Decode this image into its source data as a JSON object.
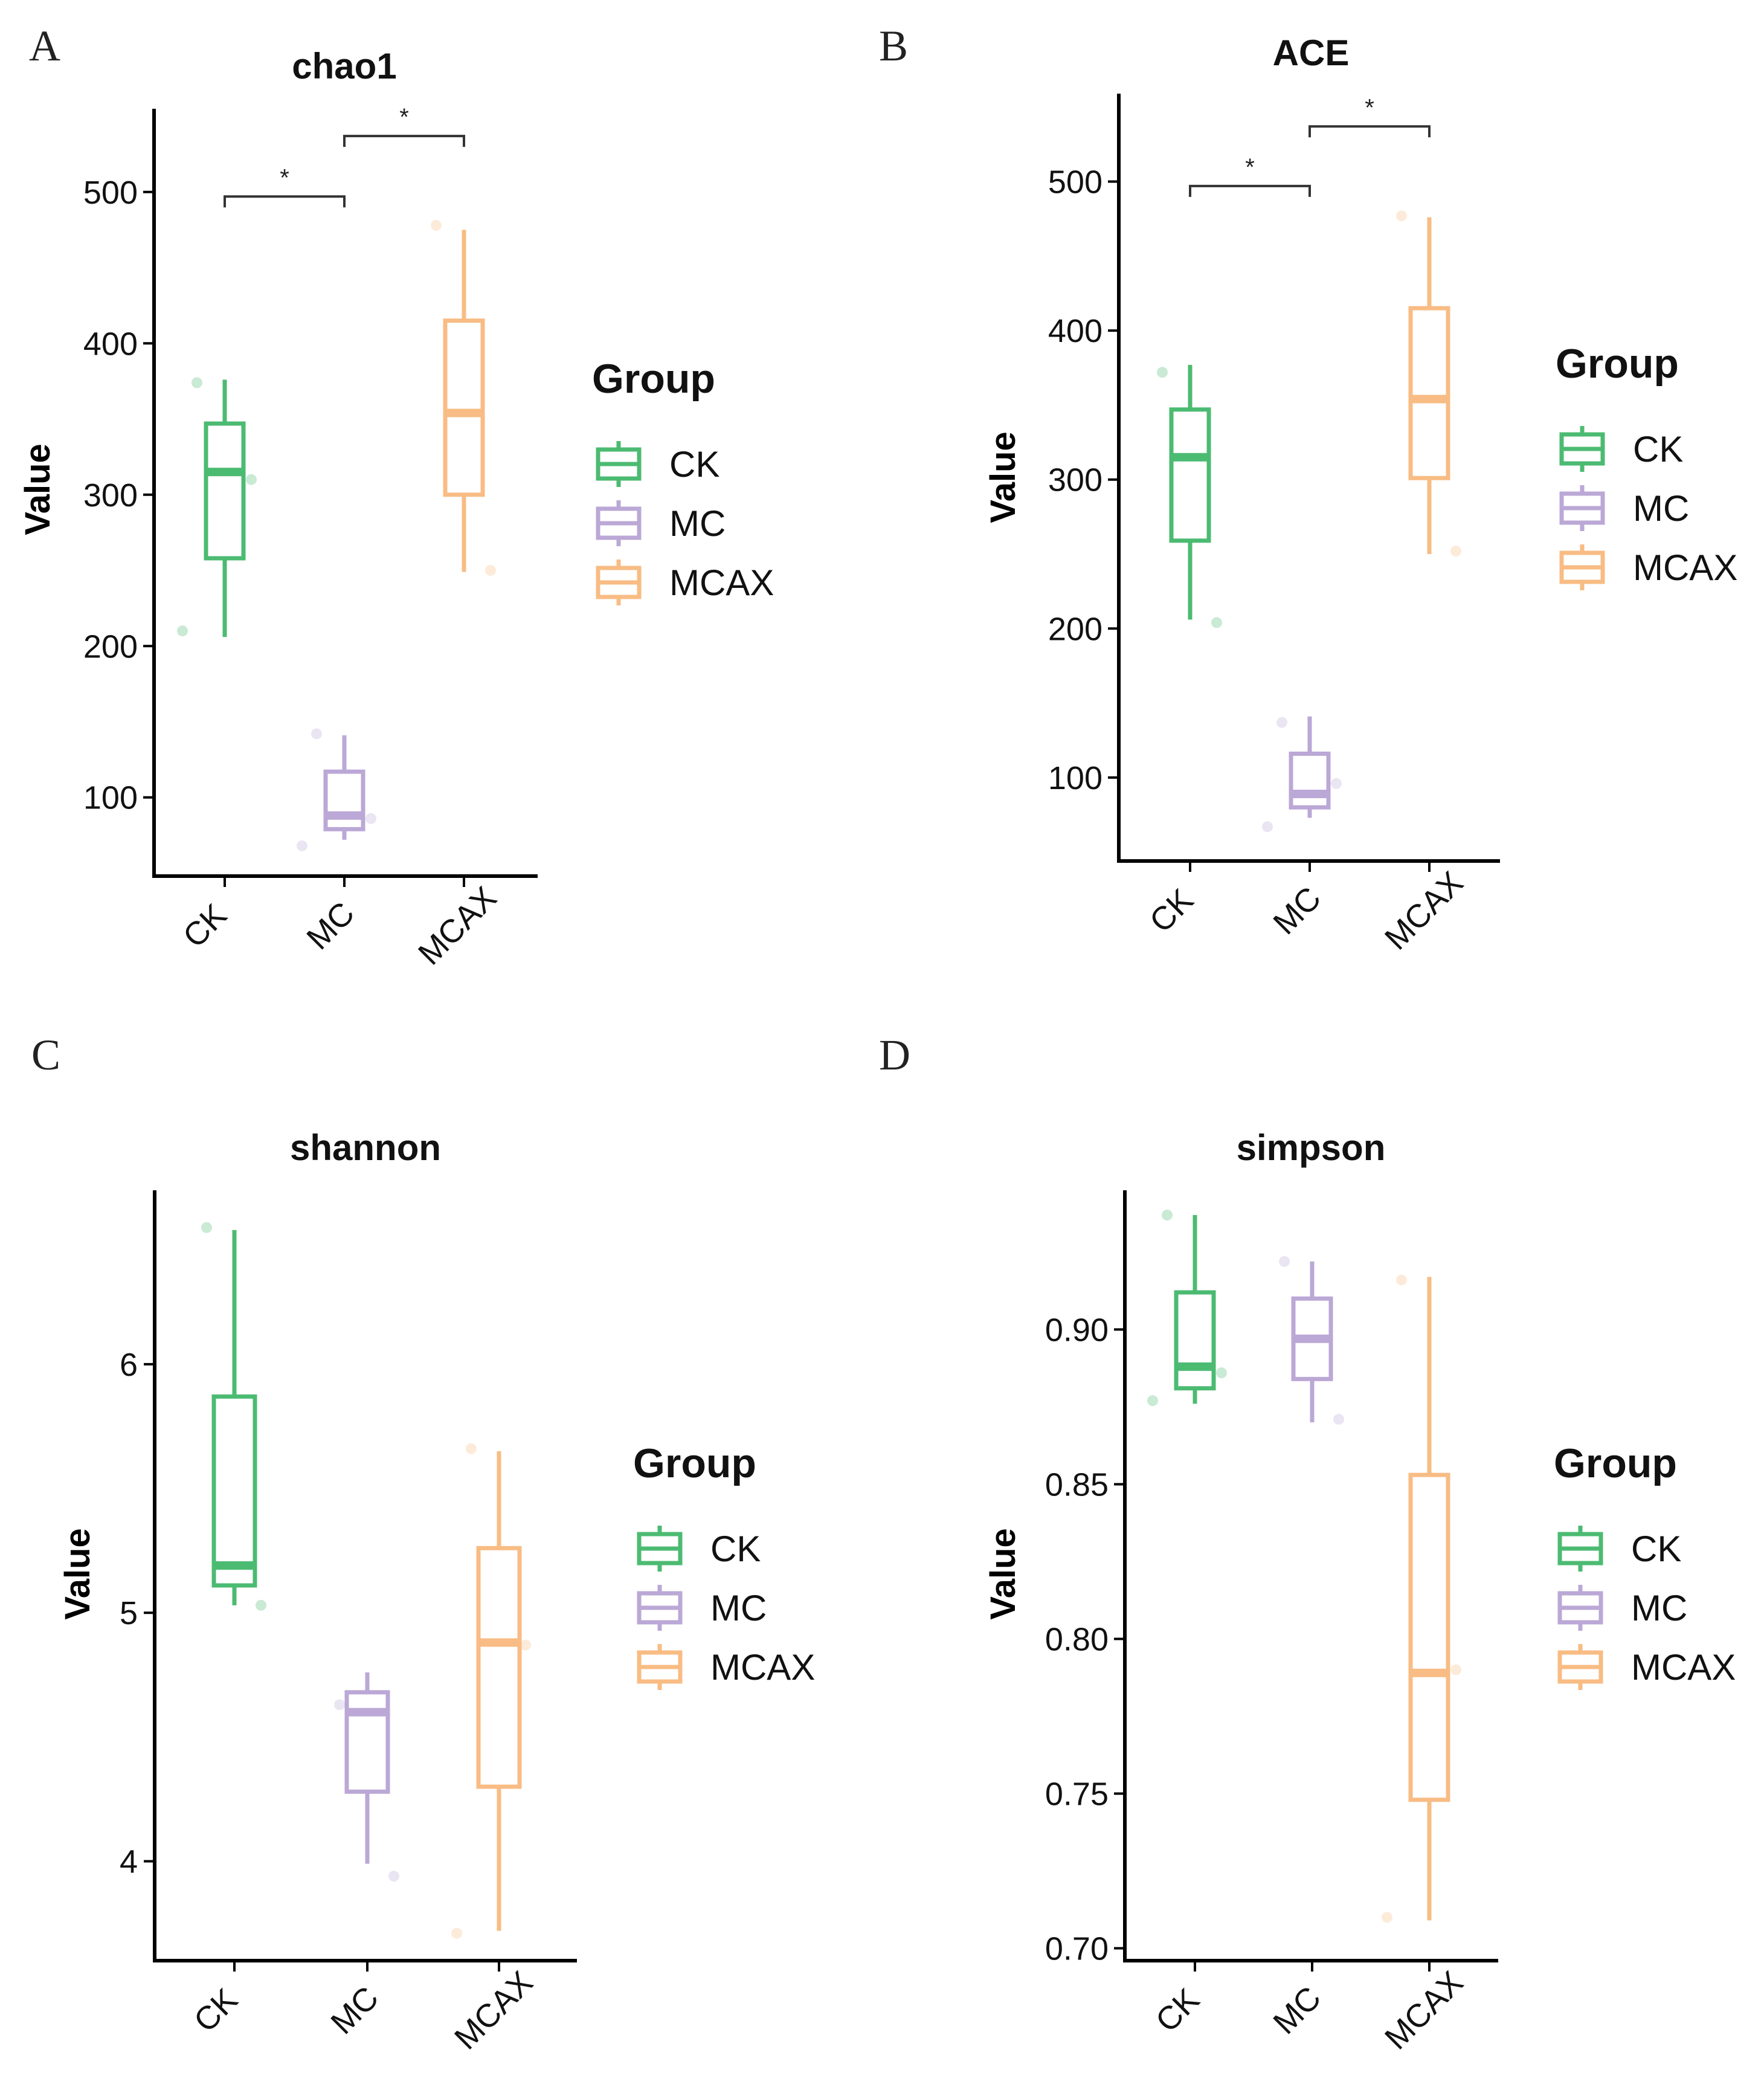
{
  "colors": {
    "CK": "#4cbb72",
    "MC": "#bba8d6",
    "MCAX": "#f8bc84",
    "axis": "#000000"
  },
  "legend": {
    "title": "Group",
    "items": [
      "CK",
      "MC",
      "MCAX"
    ]
  },
  "chart_data": [
    {
      "id": "A",
      "panel_label": "A",
      "type": "boxplot",
      "title": "chao1",
      "ylabel": "Value",
      "categories": [
        "CK",
        "MC",
        "MCAX"
      ],
      "yticks": [
        100,
        200,
        300,
        400,
        500
      ],
      "ylim": [
        48,
        555
      ],
      "boxes": [
        {
          "group": "CK",
          "min": 206,
          "q1": 258,
          "median": 315,
          "q3": 347,
          "max": 376,
          "points": [
            374,
            310,
            210
          ]
        },
        {
          "group": "MC",
          "min": 72,
          "q1": 79,
          "median": 88,
          "q3": 117,
          "max": 141,
          "points": [
            142,
            86,
            68
          ]
        },
        {
          "group": "MCAX",
          "min": 249,
          "q1": 300,
          "median": 354,
          "q3": 415,
          "max": 475,
          "points": [
            478,
            250
          ]
        }
      ],
      "significance": [
        {
          "from": "CK",
          "to": "MC",
          "label": "*",
          "y": 497
        },
        {
          "from": "MC",
          "to": "MCAX",
          "label": "*",
          "y": 537
        }
      ]
    },
    {
      "id": "B",
      "panel_label": "B",
      "type": "boxplot",
      "title": "ACE",
      "ylabel": "Value",
      "categories": [
        "CK",
        "MC",
        "MCAX"
      ],
      "yticks": [
        100,
        200,
        300,
        400,
        500
      ],
      "ylim": [
        44,
        559
      ],
      "boxes": [
        {
          "group": "CK",
          "min": 206,
          "q1": 259,
          "median": 315,
          "q3": 347,
          "max": 377,
          "points": [
            372,
            204
          ]
        },
        {
          "group": "MC",
          "min": 73,
          "q1": 80,
          "median": 89,
          "q3": 116,
          "max": 141,
          "points": [
            137,
            96,
            67
          ]
        },
        {
          "group": "MCAX",
          "min": 250,
          "q1": 301,
          "median": 354,
          "q3": 415,
          "max": 476,
          "points": [
            477,
            252
          ]
        }
      ],
      "significance": [
        {
          "from": "CK",
          "to": "MC",
          "label": "*",
          "y": 497
        },
        {
          "from": "MC",
          "to": "MCAX",
          "label": "*",
          "y": 537
        }
      ]
    },
    {
      "id": "C",
      "panel_label": "C",
      "type": "boxplot",
      "title": "shannon",
      "ylabel": "Value",
      "categories": [
        "CK",
        "MC",
        "MCAX"
      ],
      "yticks": [
        4,
        5,
        6
      ],
      "ylim": [
        3.6,
        6.7
      ],
      "boxes": [
        {
          "group": "CK",
          "min": 5.03,
          "q1": 5.11,
          "median": 5.19,
          "q3": 5.87,
          "max": 6.54,
          "points": [
            6.55,
            5.03
          ]
        },
        {
          "group": "MC",
          "min": 3.99,
          "q1": 4.28,
          "median": 4.6,
          "q3": 4.68,
          "max": 4.76,
          "points": [
            4.63,
            3.94
          ]
        },
        {
          "group": "MCAX",
          "min": 3.72,
          "q1": 4.3,
          "median": 4.88,
          "q3": 5.26,
          "max": 5.65,
          "points": [
            5.66,
            4.87,
            3.71
          ]
        }
      ],
      "significance": []
    },
    {
      "id": "D",
      "panel_label": "D",
      "type": "boxplot",
      "title": "simpson",
      "ylabel": "Value",
      "categories": [
        "CK",
        "MC",
        "MCAX"
      ],
      "yticks": [
        0.7,
        0.75,
        0.8,
        0.85,
        0.9
      ],
      "ylim": [
        0.696,
        0.945
      ],
      "ytick_labels": [
        "0.70",
        "0.75",
        "0.80",
        "0.85",
        "0.90"
      ],
      "boxes": [
        {
          "group": "CK",
          "min": 0.876,
          "q1": 0.881,
          "median": 0.888,
          "q3": 0.912,
          "max": 0.937,
          "points": [
            0.937,
            0.886,
            0.877
          ]
        },
        {
          "group": "MC",
          "min": 0.87,
          "q1": 0.884,
          "median": 0.897,
          "q3": 0.91,
          "max": 0.922,
          "points": [
            0.922,
            0.871
          ]
        },
        {
          "group": "MCAX",
          "min": 0.709,
          "q1": 0.748,
          "median": 0.789,
          "q3": 0.853,
          "max": 0.917,
          "points": [
            0.916,
            0.79,
            0.71
          ]
        }
      ],
      "significance": []
    }
  ]
}
